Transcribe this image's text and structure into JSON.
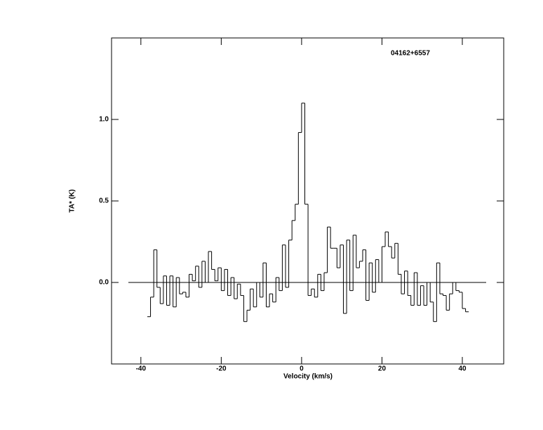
{
  "chart_data": {
    "type": "step",
    "title": "04162+6557",
    "x_label": "Velocity (km/s)",
    "y_label": "TA* (K)",
    "x": [
      -38.0,
      -37.2,
      -36.4,
      -35.6,
      -34.8,
      -34.0,
      -33.2,
      -32.4,
      -31.6,
      -30.8,
      -30.0,
      -29.2,
      -28.4,
      -27.6,
      -26.8,
      -26.0,
      -25.2,
      -24.4,
      -23.6,
      -22.8,
      -22.0,
      -21.2,
      -20.4,
      -19.6,
      -18.8,
      -18.0,
      -17.2,
      -16.4,
      -15.6,
      -14.8,
      -14.0,
      -13.2,
      -12.4,
      -11.6,
      -10.8,
      -10.0,
      -9.2,
      -8.4,
      -7.6,
      -6.8,
      -6.0,
      -5.2,
      -4.4,
      -3.6,
      -2.8,
      -2.0,
      -1.2,
      -0.4,
      0.4,
      1.2,
      2.0,
      2.8,
      3.6,
      4.4,
      5.2,
      6.0,
      6.8,
      7.6,
      8.4,
      9.2,
      10.0,
      10.8,
      11.6,
      12.4,
      13.2,
      14.0,
      14.8,
      15.6,
      16.4,
      17.2,
      18.0,
      18.8,
      19.6,
      20.4,
      21.2,
      22.0,
      22.8,
      23.6,
      24.4,
      25.2,
      26.0,
      26.8,
      27.6,
      28.4,
      29.2,
      30.0,
      30.8,
      31.6,
      32.4,
      33.2,
      34.0,
      34.8,
      35.6,
      36.4,
      37.2,
      38.0,
      38.8,
      39.6,
      40.4,
      41.2
    ],
    "values": [
      -0.21,
      -0.09,
      0.2,
      -0.03,
      -0.13,
      0.04,
      -0.14,
      0.04,
      -0.15,
      0.03,
      -0.07,
      -0.06,
      -0.09,
      0.05,
      0.01,
      0.1,
      -0.03,
      0.13,
      0.0,
      0.19,
      0.08,
      0.01,
      0.09,
      -0.05,
      0.08,
      -0.08,
      0.03,
      -0.1,
      -0.01,
      -0.08,
      -0.24,
      -0.17,
      -0.04,
      -0.15,
      0.0,
      -0.09,
      0.12,
      -0.15,
      -0.07,
      -0.12,
      0.03,
      -0.05,
      0.23,
      -0.03,
      0.26,
      0.38,
      0.48,
      0.92,
      1.1,
      0.48,
      -0.08,
      -0.04,
      -0.09,
      0.05,
      -0.05,
      0.06,
      0.34,
      0.21,
      0.21,
      0.09,
      0.23,
      -0.19,
      0.26,
      -0.05,
      0.29,
      0.09,
      0.13,
      0.2,
      -0.11,
      0.12,
      -0.06,
      0.14,
      0.0,
      0.22,
      0.31,
      0.22,
      0.15,
      0.24,
      0.05,
      -0.07,
      0.07,
      -0.08,
      -0.14,
      0.06,
      -0.14,
      -0.02,
      -0.14,
      0.0,
      -0.12,
      -0.24,
      0.12,
      -0.07,
      -0.08,
      -0.17,
      -0.07,
      0.0,
      -0.05,
      -0.06,
      -0.16,
      -0.18
    ],
    "color": "#000000",
    "xlim": [
      -47.3,
      50.3
    ],
    "xticks": [
      -40,
      -20,
      0,
      20,
      40
    ],
    "ylim": [
      -0.5,
      1.5
    ],
    "yticks": [
      {
        "value": 0,
        "label": "0.0"
      },
      0.5,
      {
        "value": 1,
        "label": "1.0"
      }
    ]
  }
}
